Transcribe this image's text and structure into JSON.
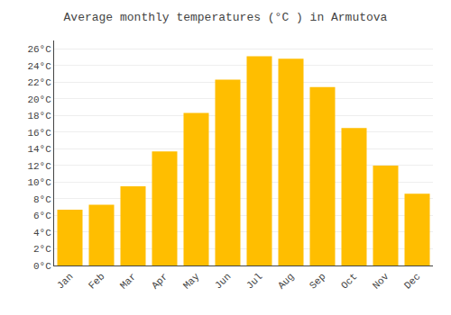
{
  "chart_data": {
    "type": "bar",
    "title": "Average monthly temperatures (°C ) in Armutova",
    "categories": [
      "Jan",
      "Feb",
      "Mar",
      "Apr",
      "May",
      "Jun",
      "Jul",
      "Aug",
      "Sep",
      "Oct",
      "Nov",
      "Dec"
    ],
    "values": [
      6.7,
      7.3,
      9.5,
      13.7,
      18.3,
      22.3,
      25.1,
      24.8,
      21.4,
      16.5,
      12.0,
      8.6
    ],
    "color": "#FFBE00",
    "ylim": [
      0,
      27
    ],
    "yticks": [
      {
        "value": 0,
        "label": "0°C"
      },
      {
        "value": 2,
        "label": "2°C"
      },
      {
        "value": 4,
        "label": "4°C"
      },
      {
        "value": 6,
        "label": "6°C"
      },
      {
        "value": 8,
        "label": "8°C"
      },
      {
        "value": 10,
        "label": "10°C"
      },
      {
        "value": 12,
        "label": "12°C"
      },
      {
        "value": 14,
        "label": "14°C"
      },
      {
        "value": 16,
        "label": "16°C"
      },
      {
        "value": 18,
        "label": "18°C"
      },
      {
        "value": 20,
        "label": "20°C"
      },
      {
        "value": 22,
        "label": "22°C"
      },
      {
        "value": 24,
        "label": "24°C"
      },
      {
        "value": 26,
        "label": "26°C"
      }
    ],
    "grid": true
  }
}
